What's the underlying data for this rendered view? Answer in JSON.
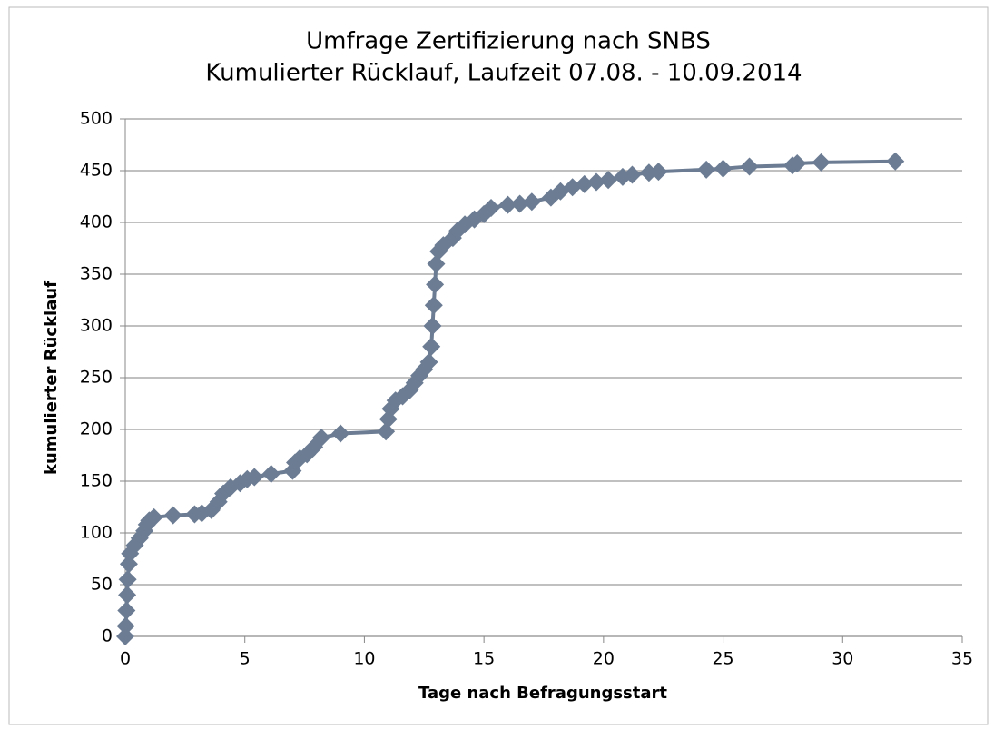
{
  "chart_data": {
    "type": "line",
    "title": [
      "Umfrage Zertifizierung nach SNBS",
      "Kumulierter Rücklauf, Laufzeit 07.08. - 10.09.2014"
    ],
    "x_label": "Tage nach Befragungsstart",
    "y_label": "kumulierter  Rücklauf",
    "x": [
      0,
      0.02,
      0.05,
      0.08,
      0.1,
      0.15,
      0.2,
      0.4,
      0.6,
      0.8,
      0.9,
      1.0,
      1.2,
      2.0,
      2.9,
      3.2,
      3.6,
      3.9,
      4.1,
      4.4,
      4.8,
      5.1,
      5.4,
      6.1,
      7.0,
      7.1,
      7.3,
      7.6,
      7.9,
      8.2,
      9.0,
      10.9,
      11.0,
      11.1,
      11.3,
      11.6,
      11.9,
      12.1,
      12.3,
      12.5,
      12.7,
      12.8,
      12.85,
      12.9,
      12.95,
      13.0,
      13.1,
      13.3,
      13.7,
      13.9,
      14.2,
      14.6,
      15.0,
      15.3,
      16.0,
      16.5,
      17.0,
      17.8,
      18.2,
      18.7,
      19.2,
      19.7,
      20.2,
      20.8,
      21.2,
      21.9,
      22.3,
      24.3,
      25.0,
      26.1,
      27.9,
      28.1,
      29.1,
      32.2
    ],
    "series": [
      {
        "name": "kumulierter Rücklauf",
        "color": "#6b7c93",
        "values": [
          0,
          10,
          25,
          40,
          55,
          70,
          80,
          88,
          95,
          102,
          108,
          112,
          115,
          117,
          118,
          119,
          122,
          130,
          138,
          144,
          148,
          152,
          154,
          157,
          160,
          168,
          172,
          176,
          183,
          192,
          196,
          198,
          210,
          220,
          228,
          232,
          238,
          245,
          252,
          258,
          265,
          280,
          300,
          320,
          340,
          360,
          372,
          378,
          385,
          392,
          398,
          403,
          408,
          414,
          417,
          418,
          420,
          424,
          430,
          434,
          437,
          439,
          441,
          444,
          446,
          448,
          449,
          451,
          452,
          454,
          455,
          457,
          458,
          459
        ]
      }
    ],
    "xlim": [
      0,
      35
    ],
    "xticks": [
      0,
      5,
      10,
      15,
      20,
      25,
      30,
      35
    ],
    "ylim": [
      0,
      500
    ],
    "yticks": [
      0,
      50,
      100,
      150,
      200,
      250,
      300,
      350,
      400,
      450,
      500
    ],
    "grid": true
  }
}
